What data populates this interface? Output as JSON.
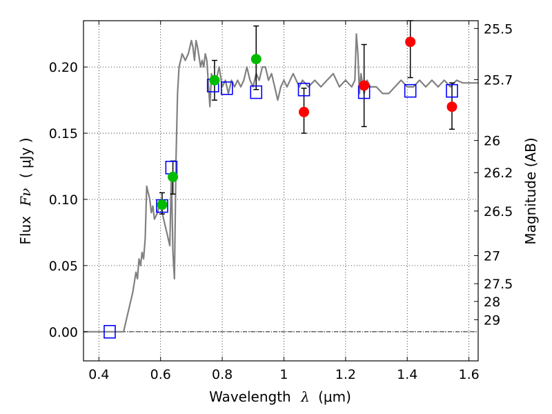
{
  "chart_data": {
    "type": "scatter",
    "xlabel": {
      "text": "Wavelength",
      "symbol": "λ",
      "unit": "(μm)"
    },
    "ylabel": {
      "text": "Flux",
      "symbol": "Fν",
      "unit": "( μJy )"
    },
    "y2label": "Magnitude (AB)",
    "xlim": [
      0.35,
      1.63
    ],
    "ylim": [
      -0.022,
      0.235
    ],
    "grid": true,
    "x_ticks": [
      0.4,
      0.6,
      0.8,
      1.0,
      1.2,
      1.4,
      1.6
    ],
    "x_tick_labels": [
      "0.4",
      "0.6",
      "0.8",
      "1",
      "1.2",
      "1.4",
      "1.6"
    ],
    "y_ticks": [
      0.0,
      0.05,
      0.1,
      0.15,
      0.2
    ],
    "y_tick_labels": [
      "0.00",
      "0.05",
      "0.10",
      "0.15",
      "0.20"
    ],
    "mag_ticks": [
      {
        "label": "25.5",
        "flux": 0.2291
      },
      {
        "label": "25.7",
        "flux": 0.1905
      },
      {
        "label": "26",
        "flux": 0.1445
      },
      {
        "label": "26.2",
        "flux": 0.1202
      },
      {
        "label": "26.5",
        "flux": 0.0912
      },
      {
        "label": "27",
        "flux": 0.0575
      },
      {
        "label": "27.5",
        "flux": 0.0363
      },
      {
        "label": "28",
        "flux": 0.0229
      },
      {
        "label": "29",
        "flux": 0.0091
      }
    ],
    "zero_line": 0.0,
    "series": [
      {
        "kind": "line",
        "color": "#808080",
        "points": [
          [
            0.35,
            0.0
          ],
          [
            0.48,
            0.0
          ],
          [
            0.5,
            0.02
          ],
          [
            0.51,
            0.03
          ],
          [
            0.52,
            0.045
          ],
          [
            0.525,
            0.04
          ],
          [
            0.53,
            0.055
          ],
          [
            0.535,
            0.05
          ],
          [
            0.54,
            0.06
          ],
          [
            0.545,
            0.055
          ],
          [
            0.55,
            0.07
          ],
          [
            0.555,
            0.11
          ],
          [
            0.56,
            0.105
          ],
          [
            0.565,
            0.1
          ],
          [
            0.57,
            0.09
          ],
          [
            0.575,
            0.095
          ],
          [
            0.58,
            0.085
          ],
          [
            0.59,
            0.09
          ],
          [
            0.6,
            0.1
          ],
          [
            0.605,
            0.09
          ],
          [
            0.61,
            0.085
          ],
          [
            0.615,
            0.08
          ],
          [
            0.62,
            0.075
          ],
          [
            0.625,
            0.07
          ],
          [
            0.63,
            0.065
          ],
          [
            0.635,
            0.12
          ],
          [
            0.64,
            0.06
          ],
          [
            0.645,
            0.04
          ],
          [
            0.65,
            0.13
          ],
          [
            0.655,
            0.18
          ],
          [
            0.66,
            0.2
          ],
          [
            0.665,
            0.205
          ],
          [
            0.67,
            0.21
          ],
          [
            0.68,
            0.205
          ],
          [
            0.69,
            0.21
          ],
          [
            0.695,
            0.215
          ],
          [
            0.7,
            0.22
          ],
          [
            0.705,
            0.215
          ],
          [
            0.71,
            0.205
          ],
          [
            0.715,
            0.22
          ],
          [
            0.72,
            0.215
          ],
          [
            0.73,
            0.2
          ],
          [
            0.735,
            0.205
          ],
          [
            0.74,
            0.2
          ],
          [
            0.745,
            0.21
          ],
          [
            0.75,
            0.205
          ],
          [
            0.76,
            0.17
          ],
          [
            0.765,
            0.195
          ],
          [
            0.77,
            0.19
          ],
          [
            0.78,
            0.19
          ],
          [
            0.79,
            0.2
          ],
          [
            0.8,
            0.185
          ],
          [
            0.81,
            0.19
          ],
          [
            0.82,
            0.18
          ],
          [
            0.83,
            0.19
          ],
          [
            0.84,
            0.185
          ],
          [
            0.85,
            0.19
          ],
          [
            0.86,
            0.185
          ],
          [
            0.87,
            0.19
          ],
          [
            0.88,
            0.2
          ],
          [
            0.89,
            0.19
          ],
          [
            0.9,
            0.185
          ],
          [
            0.91,
            0.195
          ],
          [
            0.92,
            0.19
          ],
          [
            0.93,
            0.2
          ],
          [
            0.94,
            0.2
          ],
          [
            0.95,
            0.19
          ],
          [
            0.96,
            0.195
          ],
          [
            0.97,
            0.185
          ],
          [
            0.98,
            0.175
          ],
          [
            0.99,
            0.185
          ],
          [
            1.0,
            0.19
          ],
          [
            1.01,
            0.185
          ],
          [
            1.02,
            0.19
          ],
          [
            1.03,
            0.195
          ],
          [
            1.04,
            0.19
          ],
          [
            1.05,
            0.185
          ],
          [
            1.06,
            0.19
          ],
          [
            1.08,
            0.185
          ],
          [
            1.1,
            0.19
          ],
          [
            1.12,
            0.185
          ],
          [
            1.14,
            0.19
          ],
          [
            1.16,
            0.195
          ],
          [
            1.18,
            0.185
          ],
          [
            1.2,
            0.19
          ],
          [
            1.22,
            0.185
          ],
          [
            1.23,
            0.19
          ],
          [
            1.235,
            0.225
          ],
          [
            1.24,
            0.21
          ],
          [
            1.245,
            0.18
          ],
          [
            1.25,
            0.195
          ],
          [
            1.26,
            0.18
          ],
          [
            1.27,
            0.19
          ],
          [
            1.28,
            0.185
          ],
          [
            1.3,
            0.185
          ],
          [
            1.32,
            0.18
          ],
          [
            1.34,
            0.18
          ],
          [
            1.36,
            0.185
          ],
          [
            1.38,
            0.19
          ],
          [
            1.4,
            0.185
          ],
          [
            1.42,
            0.185
          ],
          [
            1.44,
            0.19
          ],
          [
            1.46,
            0.185
          ],
          [
            1.48,
            0.19
          ],
          [
            1.5,
            0.185
          ],
          [
            1.52,
            0.19
          ],
          [
            1.54,
            0.185
          ],
          [
            1.56,
            0.19
          ],
          [
            1.58,
            0.188
          ],
          [
            1.6,
            0.188
          ],
          [
            1.63,
            0.188
          ]
        ]
      },
      {
        "kind": "squares",
        "color": "#0000ff",
        "points": [
          [
            0.435,
            0.0
          ],
          [
            0.605,
            0.095
          ],
          [
            0.635,
            0.124
          ],
          [
            0.77,
            0.186
          ],
          [
            0.815,
            0.184
          ],
          [
            0.91,
            0.181
          ],
          [
            1.065,
            0.183
          ],
          [
            1.26,
            0.181
          ],
          [
            1.41,
            0.182
          ],
          [
            1.545,
            0.182
          ]
        ]
      },
      {
        "kind": "circles",
        "color": "#00bb00",
        "points": [
          {
            "x": 0.605,
            "y": 0.096,
            "lo": 0.089,
            "hi": 0.105
          },
          {
            "x": 0.64,
            "y": 0.117,
            "lo": 0.104,
            "hi": 0.129
          },
          {
            "x": 0.775,
            "y": 0.19,
            "lo": 0.175,
            "hi": 0.205
          },
          {
            "x": 0.91,
            "y": 0.206,
            "lo": 0.183,
            "hi": 0.231
          }
        ]
      },
      {
        "kind": "circles",
        "color": "#ff0000",
        "points": [
          {
            "x": 1.065,
            "y": 0.166,
            "lo": 0.15,
            "hi": 0.184
          },
          {
            "x": 1.26,
            "y": 0.186,
            "lo": 0.155,
            "hi": 0.217
          },
          {
            "x": 1.41,
            "y": 0.219,
            "lo": 0.192,
            "hi": 0.235
          },
          {
            "x": 1.545,
            "y": 0.17,
            "lo": 0.153,
            "hi": 0.188
          }
        ]
      }
    ]
  }
}
